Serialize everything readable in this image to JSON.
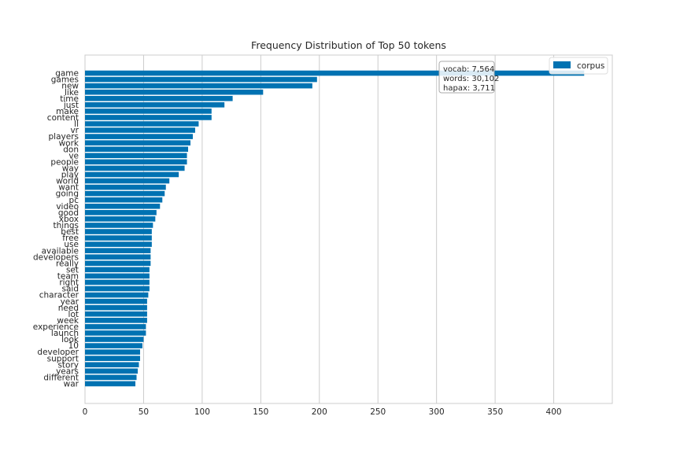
{
  "chart_data": {
    "type": "bar",
    "orientation": "horizontal",
    "title": "Frequency Distribution of Top 50 tokens",
    "xlabel": "",
    "ylabel": "",
    "xlim": [
      0,
      450
    ],
    "xticks": [
      0,
      50,
      100,
      150,
      200,
      250,
      300,
      350,
      400
    ],
    "grid": true,
    "legend_position": "top-right",
    "bar_color": "#0072b2",
    "series": [
      {
        "name": "corpus"
      }
    ],
    "categories": [
      "game",
      "games",
      "new",
      "like",
      "time",
      "just",
      "make",
      "content",
      "ll",
      "vr",
      "players",
      "work",
      "don",
      "ve",
      "people",
      "way",
      "play",
      "world",
      "want",
      "going",
      "pc",
      "video",
      "good",
      "xbox",
      "things",
      "best",
      "free",
      "use",
      "available",
      "developers",
      "really",
      "set",
      "team",
      "right",
      "said",
      "character",
      "year",
      "need",
      "lot",
      "week",
      "experience",
      "launch",
      "look",
      "10",
      "developer",
      "support",
      "story",
      "years",
      "different",
      "war"
    ],
    "values": [
      426,
      198,
      194,
      152,
      126,
      119,
      108,
      108,
      97,
      94,
      92,
      90,
      88,
      87,
      87,
      85,
      80,
      72,
      69,
      68,
      66,
      64,
      61,
      60,
      58,
      57,
      57,
      57,
      56,
      56,
      56,
      55,
      55,
      55,
      55,
      54,
      53,
      53,
      53,
      53,
      52,
      52,
      50,
      49,
      47,
      47,
      46,
      45,
      44,
      43
    ],
    "annotation": {
      "vocab": "vocab: 7,564",
      "words": "words: 30,102",
      "hapax": "hapax: 3,711"
    }
  }
}
